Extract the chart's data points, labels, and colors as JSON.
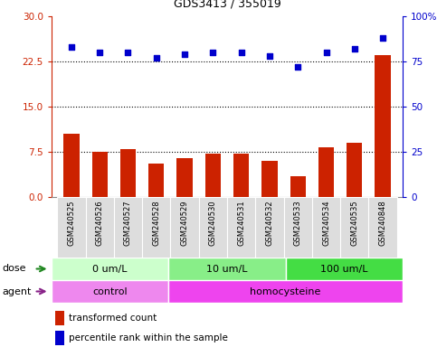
{
  "title": "GDS3413 / 355019",
  "samples": [
    "GSM240525",
    "GSM240526",
    "GSM240527",
    "GSM240528",
    "GSM240529",
    "GSM240530",
    "GSM240531",
    "GSM240532",
    "GSM240533",
    "GSM240534",
    "GSM240535",
    "GSM240848"
  ],
  "bar_values": [
    10.5,
    7.5,
    8.0,
    5.5,
    6.5,
    7.2,
    7.2,
    6.0,
    3.5,
    8.2,
    9.0,
    23.5
  ],
  "scatter_values": [
    83,
    80,
    80,
    77,
    79,
    80,
    80,
    78,
    72,
    80,
    82,
    88
  ],
  "bar_color": "#cc2200",
  "scatter_color": "#0000cc",
  "ylim_left": [
    0,
    30
  ],
  "ylim_right": [
    0,
    100
  ],
  "yticks_left": [
    0,
    7.5,
    15,
    22.5,
    30
  ],
  "yticks_right": [
    0,
    25,
    50,
    75,
    100
  ],
  "ytick_labels_right": [
    "0",
    "25",
    "50",
    "75",
    "100%"
  ],
  "hlines": [
    7.5,
    15,
    22.5
  ],
  "dose_groups": [
    {
      "label": "0 um/L",
      "start": 0,
      "end": 4,
      "color": "#ccffcc"
    },
    {
      "label": "10 um/L",
      "start": 4,
      "end": 8,
      "color": "#88ee88"
    },
    {
      "label": "100 um/L",
      "start": 8,
      "end": 12,
      "color": "#44dd44"
    }
  ],
  "agent_groups": [
    {
      "label": "control",
      "start": 0,
      "end": 4,
      "color": "#ee88ee"
    },
    {
      "label": "homocysteine",
      "start": 4,
      "end": 12,
      "color": "#ee44ee"
    }
  ],
  "legend_items": [
    {
      "label": "transformed count",
      "color": "#cc2200"
    },
    {
      "label": "percentile rank within the sample",
      "color": "#0000cc"
    }
  ],
  "background_color": "#ffffff"
}
